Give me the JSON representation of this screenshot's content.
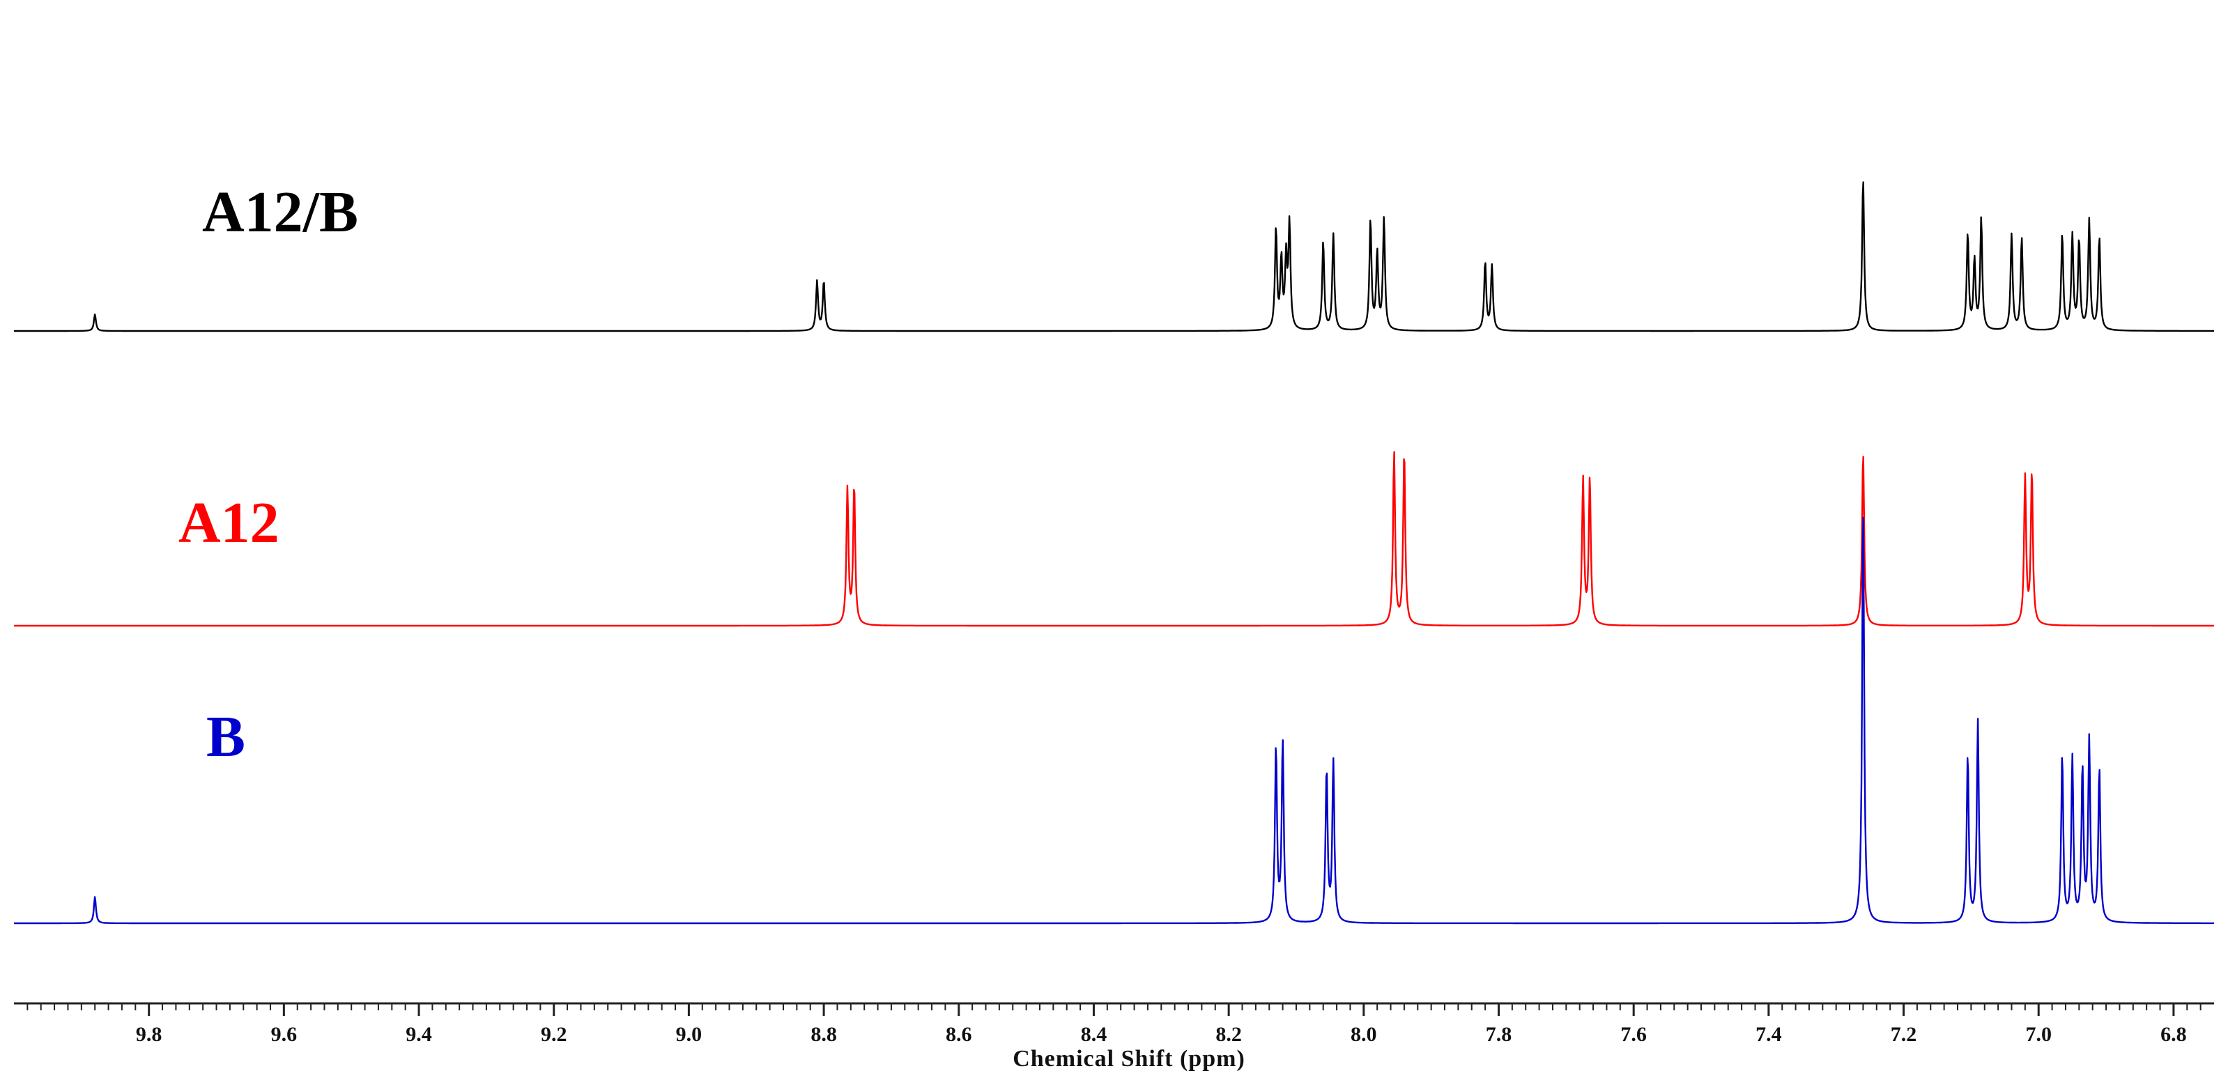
{
  "chart_data": {
    "type": "line",
    "title": "",
    "xlabel": "Chemical Shift (ppm)",
    "ylabel": "",
    "x_reversed": true,
    "xlim": [
      10.0,
      6.74
    ],
    "grid": false,
    "legend": "none",
    "x_ticks": [
      "9.8",
      "9.6",
      "9.4",
      "9.2",
      "9.0",
      "8.8",
      "8.6",
      "8.4",
      "8.2",
      "8.0",
      "7.8",
      "7.6",
      "7.4",
      "7.2",
      "7.0",
      "6.8"
    ],
    "series": [
      {
        "name": "A12/B",
        "color": "#000000",
        "peaks_ppm": [
          [
            9.88,
            0.24
          ],
          [
            8.81,
            0.71
          ],
          [
            8.8,
            0.71
          ],
          [
            8.13,
            1.44
          ],
          [
            8.122,
            1.0
          ],
          [
            8.115,
            1.0
          ],
          [
            8.11,
            1.5
          ],
          [
            8.06,
            1.28
          ],
          [
            8.045,
            1.38
          ],
          [
            7.99,
            1.58
          ],
          [
            7.98,
            1.1
          ],
          [
            7.97,
            1.6
          ],
          [
            7.82,
            0.98
          ],
          [
            7.81,
            0.93
          ],
          [
            7.26,
            2.2
          ],
          [
            7.105,
            1.38
          ],
          [
            7.095,
            1.0
          ],
          [
            7.085,
            1.6
          ],
          [
            7.04,
            1.38
          ],
          [
            7.025,
            1.33
          ],
          [
            6.965,
            1.38
          ],
          [
            6.95,
            1.35
          ],
          [
            6.94,
            1.28
          ],
          [
            6.925,
            1.58
          ],
          [
            6.91,
            1.33
          ]
        ]
      },
      {
        "name": "A12",
        "color": "#ff0000",
        "peaks_ppm": [
          [
            8.765,
            1.95
          ],
          [
            8.755,
            2.0
          ],
          [
            7.955,
            2.48
          ],
          [
            7.94,
            2.5
          ],
          [
            7.675,
            2.1
          ],
          [
            7.665,
            2.1
          ],
          [
            7.26,
            2.5
          ],
          [
            7.02,
            2.12
          ],
          [
            7.01,
            2.2
          ]
        ]
      },
      {
        "name": "B",
        "color": "#0000cc",
        "peaks_ppm": [
          [
            9.88,
            0.38
          ],
          [
            8.13,
            2.5
          ],
          [
            8.12,
            2.6
          ],
          [
            8.055,
            2.2
          ],
          [
            8.045,
            2.3
          ],
          [
            7.26,
            6.0
          ],
          [
            7.105,
            2.4
          ],
          [
            7.09,
            2.9
          ],
          [
            6.965,
            2.4
          ],
          [
            6.95,
            2.35
          ],
          [
            6.935,
            2.2
          ],
          [
            6.925,
            2.6
          ],
          [
            6.91,
            2.2
          ]
        ]
      }
    ]
  }
}
